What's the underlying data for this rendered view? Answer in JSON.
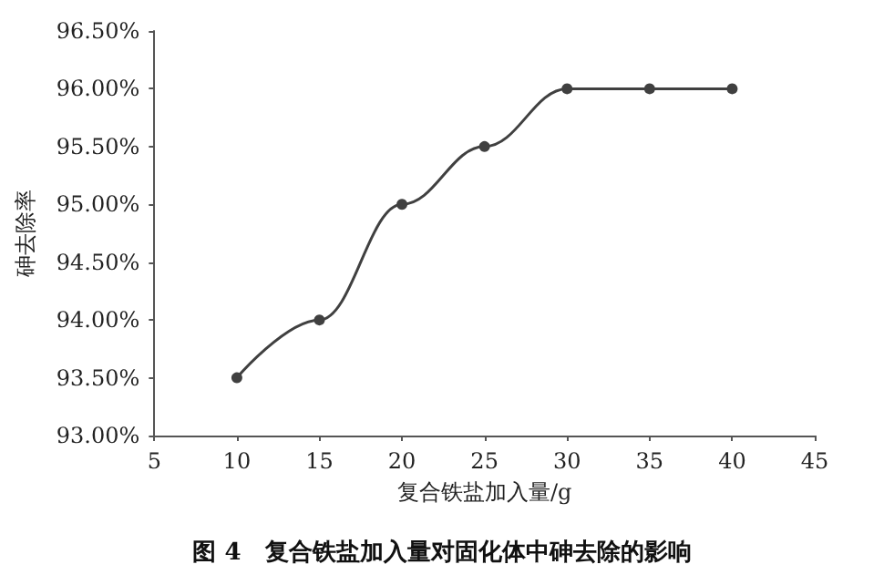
{
  "chart_data": {
    "type": "line",
    "title": "图 4　复合铁盐加入量对固化体中砷去除的影响",
    "xlabel": "复合铁盐加入量/g",
    "ylabel": "砷去除率",
    "x": [
      10,
      15,
      20,
      25,
      30,
      35,
      40
    ],
    "series": [
      {
        "color": "#404040",
        "values": [
          93.5,
          94.0,
          95.0,
          95.5,
          96.0,
          96.0,
          96.0
        ]
      }
    ],
    "xlim": [
      5,
      45
    ],
    "xticks": [
      5,
      10,
      15,
      20,
      25,
      30,
      35,
      40,
      45
    ],
    "ylim": [
      93,
      96.5
    ],
    "yticks": [
      {
        "value": 93,
        "label": "93.00%"
      },
      {
        "value": 93.5,
        "label": "93.50%"
      },
      {
        "value": 94,
        "label": "94.00%"
      },
      {
        "value": 94.5,
        "label": "94.50%"
      },
      {
        "value": 95,
        "label": "95.00%"
      },
      {
        "value": 95.5,
        "label": "95.50%"
      },
      {
        "value": 96,
        "label": "96.00%"
      },
      {
        "value": 96.5,
        "label": "96.50%"
      }
    ],
    "grid": false,
    "marker": "circle",
    "line_style": "solid"
  }
}
